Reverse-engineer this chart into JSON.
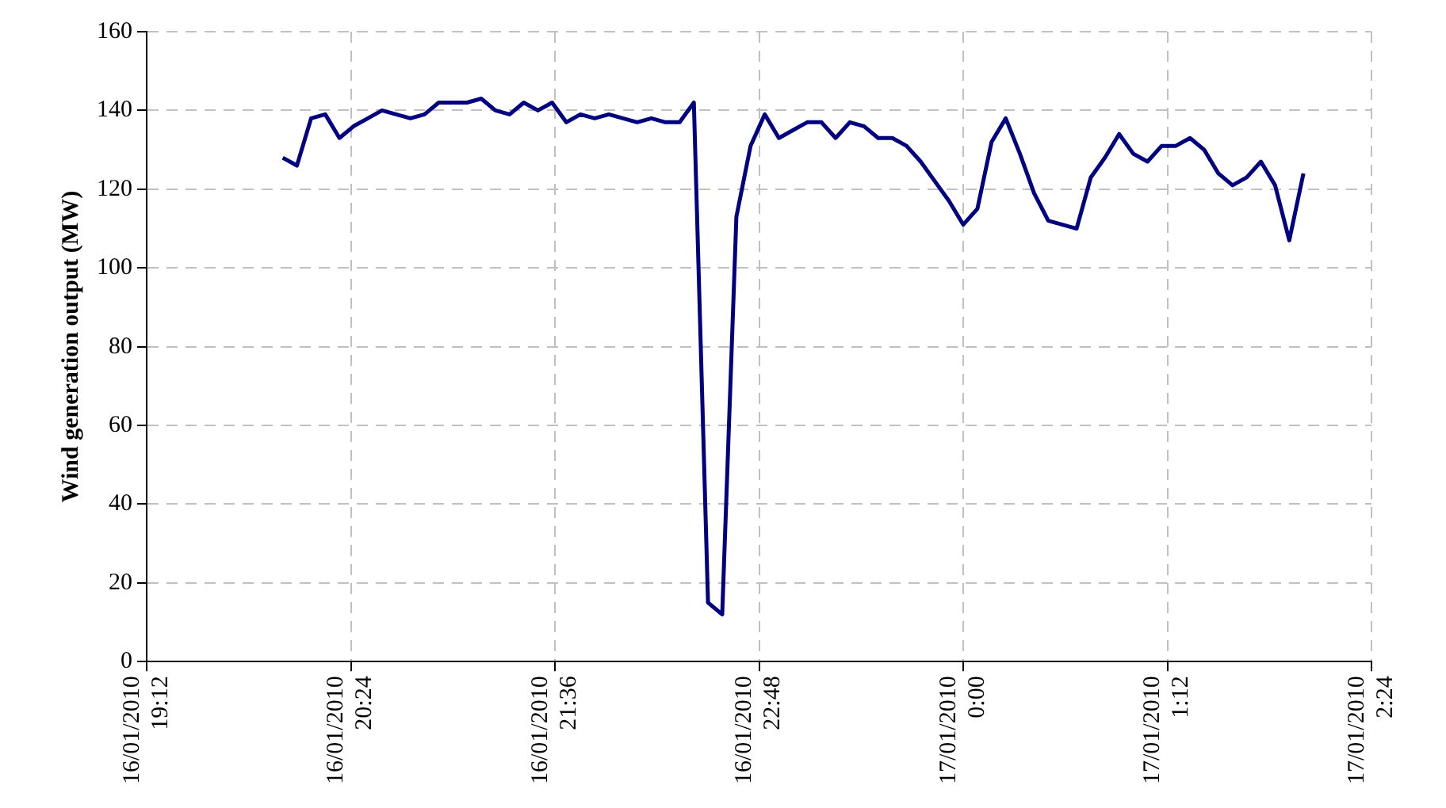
{
  "chart_data": {
    "type": "line",
    "ylabel": "Wind generation output (MW)",
    "x": [
      "2010-01-16T20:00",
      "2010-01-16T20:05",
      "2010-01-16T20:10",
      "2010-01-16T20:15",
      "2010-01-16T20:20",
      "2010-01-16T20:25",
      "2010-01-16T20:30",
      "2010-01-16T20:35",
      "2010-01-16T20:40",
      "2010-01-16T20:45",
      "2010-01-16T20:50",
      "2010-01-16T20:55",
      "2010-01-16T21:00",
      "2010-01-16T21:05",
      "2010-01-16T21:10",
      "2010-01-16T21:15",
      "2010-01-16T21:20",
      "2010-01-16T21:25",
      "2010-01-16T21:30",
      "2010-01-16T21:35",
      "2010-01-16T21:40",
      "2010-01-16T21:45",
      "2010-01-16T21:50",
      "2010-01-16T21:55",
      "2010-01-16T22:00",
      "2010-01-16T22:05",
      "2010-01-16T22:10",
      "2010-01-16T22:15",
      "2010-01-16T22:20",
      "2010-01-16T22:25",
      "2010-01-16T22:30",
      "2010-01-16T22:35",
      "2010-01-16T22:40",
      "2010-01-16T22:45",
      "2010-01-16T22:50",
      "2010-01-16T22:55",
      "2010-01-16T23:00",
      "2010-01-16T23:05",
      "2010-01-16T23:10",
      "2010-01-16T23:15",
      "2010-01-16T23:20",
      "2010-01-16T23:25",
      "2010-01-16T23:30",
      "2010-01-16T23:35",
      "2010-01-16T23:40",
      "2010-01-16T23:45",
      "2010-01-16T23:50",
      "2010-01-16T23:55",
      "2010-01-17T00:00",
      "2010-01-17T00:05",
      "2010-01-17T00:10",
      "2010-01-17T00:15",
      "2010-01-17T00:20",
      "2010-01-17T00:25",
      "2010-01-17T00:30",
      "2010-01-17T00:35",
      "2010-01-17T00:40",
      "2010-01-17T00:45",
      "2010-01-17T00:50",
      "2010-01-17T00:55",
      "2010-01-17T01:00",
      "2010-01-17T01:05",
      "2010-01-17T01:10",
      "2010-01-17T01:15",
      "2010-01-17T01:20",
      "2010-01-17T01:25",
      "2010-01-17T01:30",
      "2010-01-17T01:35",
      "2010-01-17T01:40",
      "2010-01-17T01:45",
      "2010-01-17T01:50",
      "2010-01-17T01:55",
      "2010-01-17T02:00"
    ],
    "series": [
      {
        "color": "#000080",
        "values": [
          128,
          126,
          138,
          139,
          133,
          136,
          138,
          140,
          139,
          138,
          139,
          142,
          142,
          142,
          143,
          140,
          139,
          142,
          140,
          142,
          137,
          139,
          138,
          139,
          138,
          137,
          138,
          137,
          137,
          142,
          15,
          12,
          113,
          131,
          139,
          133,
          135,
          137,
          137,
          133,
          137,
          136,
          133,
          133,
          131,
          127,
          122,
          117,
          111,
          115,
          132,
          138,
          129,
          119,
          112,
          111,
          110,
          123,
          128,
          134,
          129,
          127,
          131,
          131,
          133,
          130,
          124,
          121,
          123,
          127,
          121,
          107,
          124
        ]
      }
    ],
    "xlim": [
      "2010-01-16T19:12",
      "2010-01-17T02:24"
    ],
    "xticks": [
      {
        "value": "2010-01-16T19:12",
        "label": "16/01/2010\n19:12"
      },
      {
        "value": "2010-01-16T20:24",
        "label": "16/01/2010\n20:24"
      },
      {
        "value": "2010-01-16T21:36",
        "label": "16/01/2010\n21:36"
      },
      {
        "value": "2010-01-16T22:48",
        "label": "16/01/2010\n22:48"
      },
      {
        "value": "2010-01-17T00:00",
        "label": "17/01/2010\n0:00"
      },
      {
        "value": "2010-01-17T01:12",
        "label": "17/01/2010\n1:12"
      },
      {
        "value": "2010-01-17T02:24",
        "label": "17/01/2010\n2:24"
      }
    ],
    "ylim": [
      0,
      160
    ],
    "yticks": [
      0,
      20,
      40,
      60,
      80,
      100,
      120,
      140,
      160
    ],
    "grid": true,
    "legend": false,
    "marker": "none",
    "line_style": "solid"
  }
}
